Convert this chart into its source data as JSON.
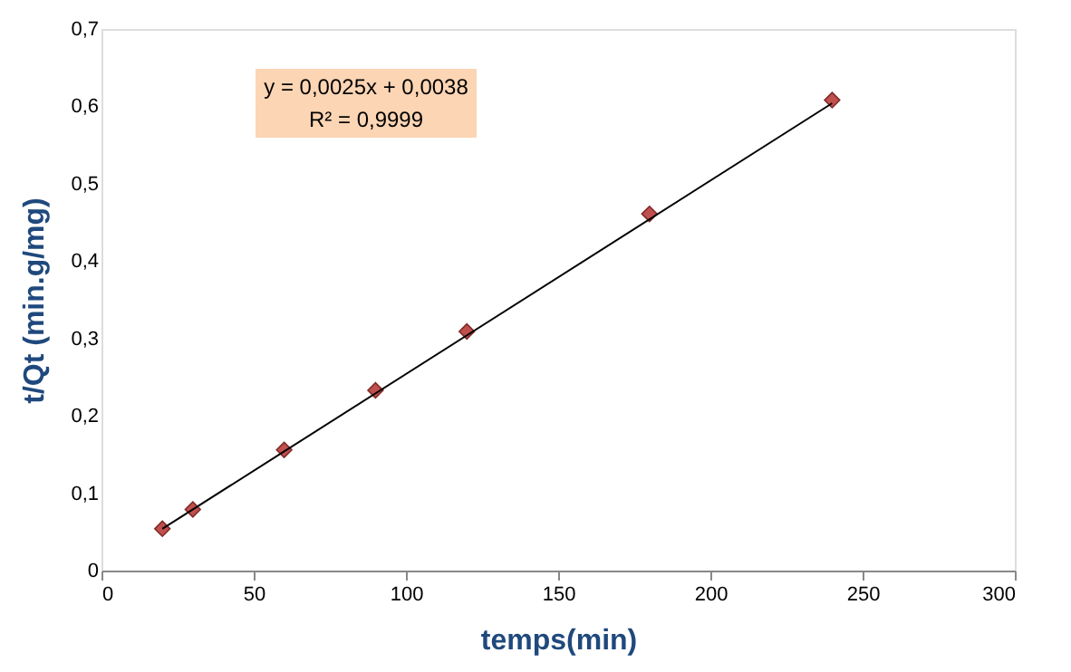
{
  "chart_data": {
    "type": "scatter",
    "xlabel": "temps(min)",
    "ylabel": "t/Qt (min.g/mg)",
    "x": [
      20,
      30,
      60,
      90,
      120,
      180,
      240
    ],
    "series": [
      {
        "color": "#c0504d",
        "marker": "diamond",
        "values": [
          0.054,
          0.079,
          0.156,
          0.233,
          0.309,
          0.461,
          0.608
        ]
      },
      {
        "type": "line",
        "color": "#000000",
        "x": [
          20,
          240
        ],
        "values": [
          0.054,
          0.604
        ]
      }
    ],
    "xlim": [
      0,
      300
    ],
    "xticks": [
      0,
      50,
      100,
      150,
      200,
      250,
      300
    ],
    "ylim": [
      0,
      0.7
    ],
    "yticks": [
      0,
      {
        "value": 0.1,
        "label": "0,1"
      },
      {
        "value": 0.2,
        "label": "0,2"
      },
      {
        "value": 0.3,
        "label": "0,3"
      },
      {
        "value": 0.4,
        "label": "0,4"
      },
      {
        "value": 0.5,
        "label": "0,5"
      },
      {
        "value": 0.6,
        "label": "0,6"
      },
      {
        "value": 0.7,
        "label": "0,7"
      }
    ],
    "annotations": [
      "y = 0,0025x + 0,0038",
      "R² = 0,9999"
    ],
    "grid": false
  }
}
